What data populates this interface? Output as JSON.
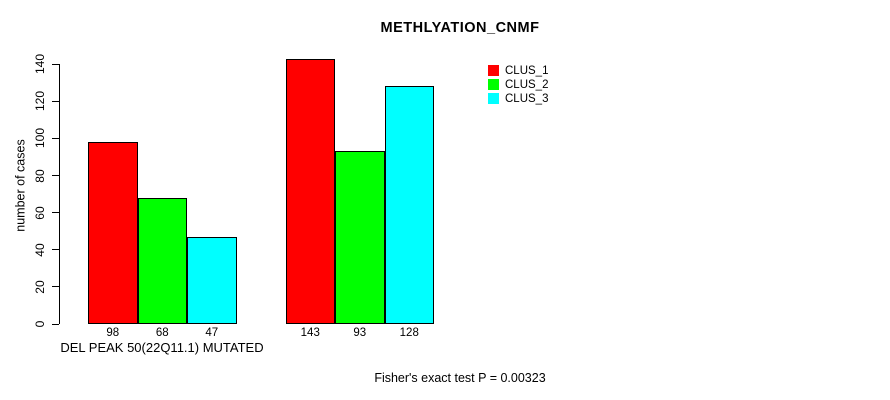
{
  "chart_data": {
    "type": "bar",
    "title": "METHLYATION_CNMF",
    "ylabel": "number of cases",
    "xlabel": "",
    "ylim": [
      0,
      140
    ],
    "yticks": [
      0,
      20,
      40,
      60,
      80,
      100,
      120,
      140
    ],
    "grid": false,
    "legend_position": "top-right-inside",
    "bar_colors": [
      "#FF0000",
      "#00FF00",
      "#00FFFF"
    ],
    "series": [
      {
        "name": "CLUS_1",
        "color": "#FF0000",
        "values": [
          98,
          143
        ]
      },
      {
        "name": "CLUS_2",
        "color": "#00FF00",
        "values": [
          68,
          93
        ]
      },
      {
        "name": "CLUS_3",
        "color": "#00FFFF",
        "values": [
          47,
          128
        ]
      }
    ],
    "groups": [
      {
        "label": "DEL PEAK 50(22Q11.1) MUTATED",
        "values": [
          98,
          68,
          47
        ]
      },
      {
        "label": "",
        "values": [
          143,
          93,
          128
        ]
      }
    ],
    "bar_value_labels": [
      [
        "98",
        "68",
        "47"
      ],
      [
        "143",
        "93",
        "128"
      ]
    ],
    "annotation": "Fisher's exact test P = 0.00323"
  }
}
